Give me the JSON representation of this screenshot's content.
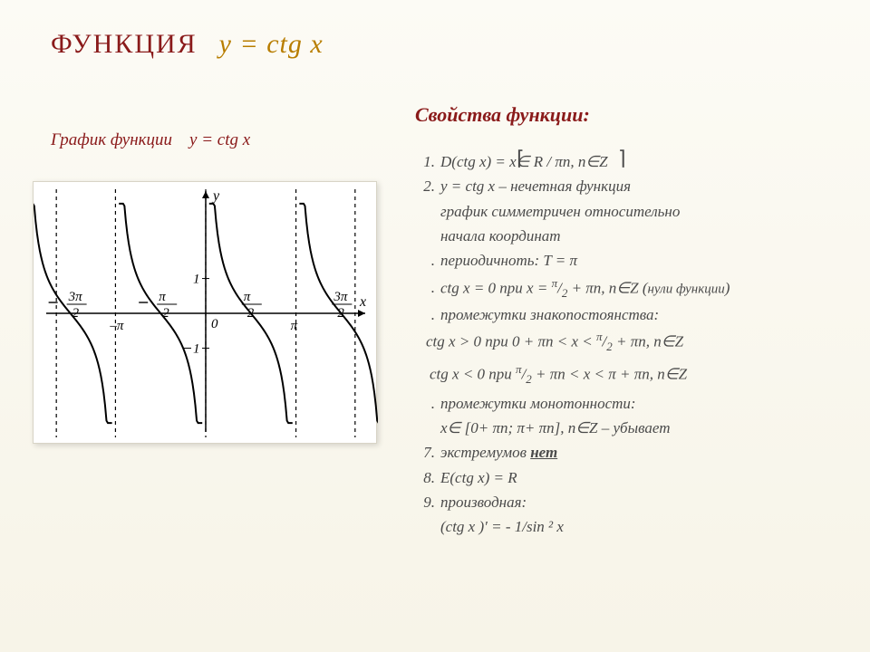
{
  "title": {
    "word": "ФУНКЦИЯ",
    "equation": "y = ctg x"
  },
  "graph_caption_label": "График функции",
  "graph_caption_eq": "y = ctg x",
  "graph": {
    "type": "line",
    "style": {
      "background": "#ffffff",
      "axis_color": "#000000",
      "curve_color": "#000000",
      "asymptote_color": "#000000",
      "asymptote_dash": "4,4",
      "curve_width": 2,
      "axis_width": 1.5,
      "label_fontsize": 16,
      "tick_fontsize": 15
    },
    "axes": {
      "x_label": "x",
      "y_label": "y",
      "x_range": [
        -5.3,
        5.3
      ],
      "y_range": [
        -3.2,
        3.2
      ]
    },
    "asymptotes_x": [
      -3.1416,
      0,
      3.1416
    ],
    "curves_offsets": [
      -4.7124,
      -1.5708,
      1.5708,
      4.7124
    ],
    "x_tick_labels": [
      {
        "x": -4.7124,
        "text_lines": [
          "3π",
          "2"
        ],
        "neg": true
      },
      {
        "x": -3.1416,
        "text": "–π"
      },
      {
        "x": -1.5708,
        "text_lines": [
          "π",
          "2"
        ],
        "neg": true
      },
      {
        "x": 1.5708,
        "text_lines": [
          "π",
          "2"
        ],
        "neg": false
      },
      {
        "x": 3.1416,
        "text": "π"
      },
      {
        "x": 4.7124,
        "text_lines": [
          "3π",
          "2"
        ],
        "neg": false
      }
    ],
    "y_ticks": [
      {
        "y": 1,
        "label": "1"
      },
      {
        "y": -1,
        "label": "1",
        "neg": true
      }
    ],
    "origin_label": "0"
  },
  "props_title": "Свойства функции:",
  "props": {
    "p1": "D(ctg x) =     x∈ R / πn,  n∈Z",
    "p2a": "y = ctg x – нечетная функция",
    "p2b": "график симметричен относительно",
    "p2c": "начала координат",
    "p3": "периодичноть:  T = π",
    "p4a": "ctg x  = 0 при x = ",
    "p4b": " + πn,  n∈Z (",
    "p4c": "нули функции",
    "p4d": ")",
    "p5a": "промежутки знакопостоянства:",
    "p5b": "сtg x > 0 при     0 + πn < x < ",
    "p5c": " + πn,  n∈Z",
    "p5d": "ctg x < 0 при   ",
    "p5e": " + πn < x < π + πn,  n∈Z",
    "p6a": "промежутки монотонности:",
    "p6b": "x∈ [0+ πn; π+ πn],  n∈Z – убывает",
    "p7a": "экстремумов ",
    "p7b": "нет",
    "p8": "E(ctg x) = R",
    "p9a": "производная:",
    "p9b": "(ctg x )′ = - 1/sin ² x"
  },
  "frac": {
    "top": "π",
    "bot": "2"
  }
}
